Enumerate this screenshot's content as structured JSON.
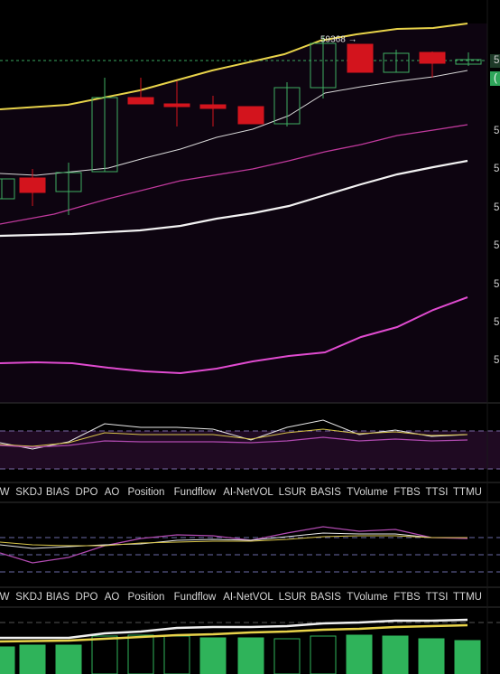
{
  "main_chart": {
    "price_tag": "59368 →",
    "axis_labels": [
      "5",
      "(",
      "5",
      "5",
      "5",
      "5",
      "5",
      "5",
      "5"
    ]
  },
  "indicator_tabs_1": [
    "W",
    "SKDJ",
    "BIAS",
    "DPO",
    "AO",
    "Position",
    "Fundflow",
    "AI-NetVOL",
    "LSUR",
    "BASIS",
    "TVolume",
    "FTBS",
    "TTSI",
    "TTMU"
  ],
  "indicator_tabs_2": [
    "W",
    "SKDJ",
    "BIAS",
    "DPO",
    "AO",
    "Position",
    "Fundflow",
    "AI-NetVOL",
    "LSUR",
    "BASIS",
    "TVolume",
    "FTBS",
    "TTSI",
    "TTMU"
  ]
}
